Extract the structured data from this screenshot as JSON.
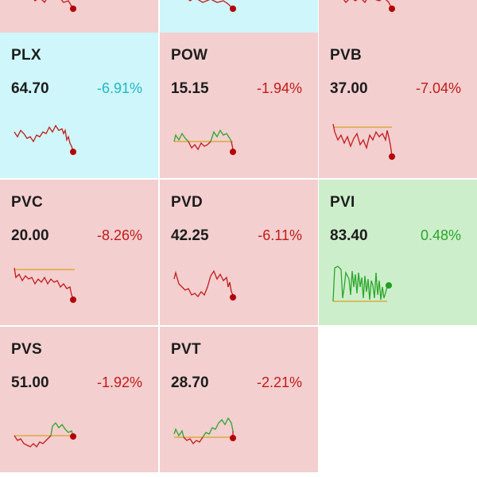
{
  "colors": {
    "down_bg": "#f3cfcf",
    "up_bg": "#cdeecb",
    "highlight_bg": "#cff6fa",
    "down_text": "#c21a1a",
    "up_text": "#2aa62a",
    "highlight_text": "#1fb8c8",
    "baseline": "#d9a020"
  },
  "tiles": [
    {
      "symbol": "",
      "price": "",
      "change": "",
      "state": "down"
    },
    {
      "symbol": "",
      "price": "",
      "change": "",
      "state": "highlight"
    },
    {
      "symbol": "",
      "price": "",
      "change": "",
      "state": "down"
    },
    {
      "symbol": "PLX",
      "price": "64.70",
      "change": "-6.91%",
      "state": "highlight"
    },
    {
      "symbol": "POW",
      "price": "15.15",
      "change": "-1.94%",
      "state": "down"
    },
    {
      "symbol": "PVB",
      "price": "37.00",
      "change": "-7.04%",
      "state": "down"
    },
    {
      "symbol": "PVC",
      "price": "20.00",
      "change": "-8.26%",
      "state": "down"
    },
    {
      "symbol": "PVD",
      "price": "42.25",
      "change": "-6.11%",
      "state": "down"
    },
    {
      "symbol": "PVI",
      "price": "83.40",
      "change": "0.48%",
      "state": "up"
    },
    {
      "symbol": "PVS",
      "price": "51.00",
      "change": "-1.92%",
      "state": "down"
    },
    {
      "symbol": "PVT",
      "price": "28.70",
      "change": "-2.21%",
      "state": "down"
    }
  ]
}
